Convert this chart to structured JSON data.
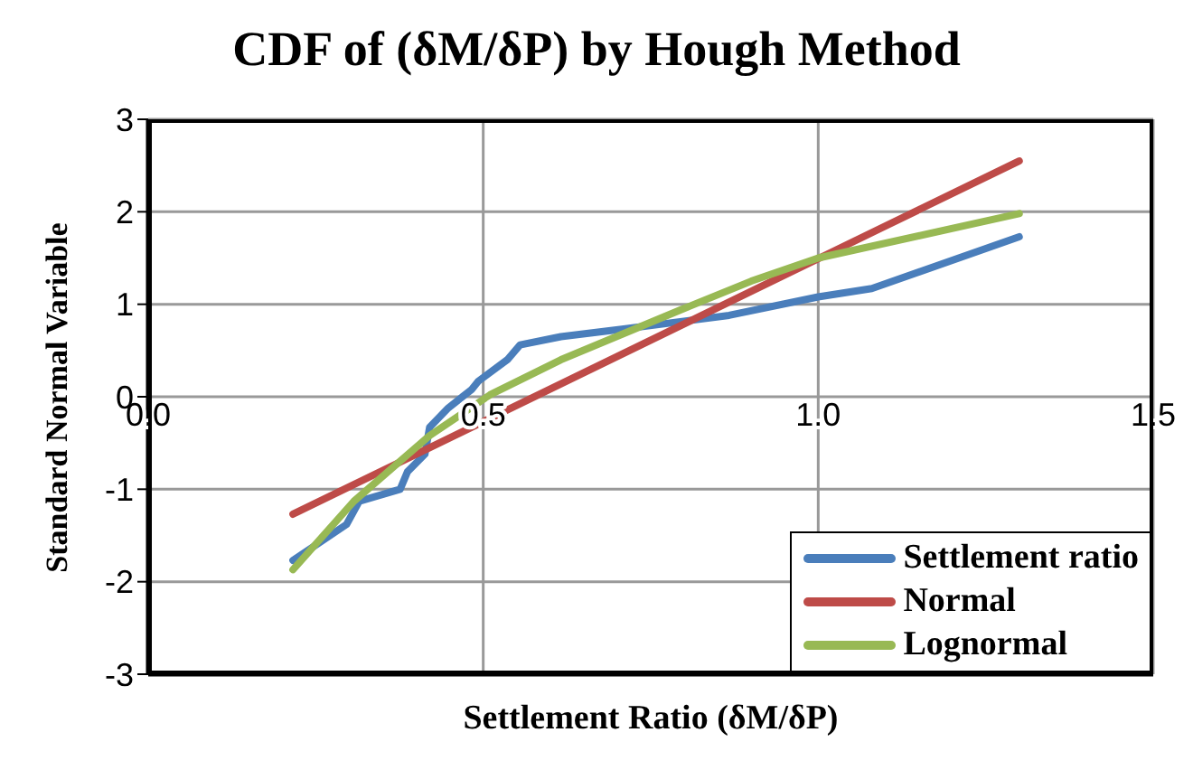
{
  "chart_data": {
    "type": "line",
    "title": "CDF of (δM/δP) by Hough Method",
    "xlabel": "Settlement Ratio (δM/δP)",
    "ylabel": "Standard Normal Variable",
    "xlim": [
      0,
      1.5
    ],
    "xticks": [
      {
        "value": 0,
        "label": "0.0"
      },
      {
        "value": 0.5,
        "label": "0.5"
      },
      {
        "value": 1,
        "label": "1.0"
      },
      {
        "value": 1.5,
        "label": "1.5"
      }
    ],
    "ylim": [
      -3,
      3
    ],
    "yticks": [
      -3,
      -2,
      -1,
      0,
      1,
      2,
      3
    ],
    "grid": true,
    "legend": "bottom right",
    "marker": "none",
    "line_style": "solid",
    "series": [
      {
        "name": "Settlement ratio",
        "color": "#4a7ebb",
        "x": [
          0.216,
          0.296,
          0.315,
          0.376,
          0.387,
          0.413,
          0.42,
          0.448,
          0.483,
          0.493,
          0.536,
          0.555,
          0.616,
          0.707,
          0.867,
          1.0,
          1.08,
          1.3
        ],
        "values": [
          -1.77,
          -1.38,
          -1.13,
          -1.0,
          -0.81,
          -0.62,
          -0.33,
          -0.12,
          0.08,
          0.17,
          0.4,
          0.56,
          0.65,
          0.73,
          0.88,
          1.08,
          1.17,
          1.73
        ]
      },
      {
        "name": "Normal",
        "color": "#be4b48",
        "x": [
          0.216,
          1.3
        ],
        "values": [
          -1.27,
          2.55
        ]
      },
      {
        "name": "Lognormal",
        "color": "#98b954",
        "x": [
          0.216,
          0.307,
          0.42,
          0.51,
          0.616,
          0.795,
          0.9,
          1.0,
          1.3
        ],
        "values": [
          -1.87,
          -1.13,
          -0.42,
          0.02,
          0.4,
          0.94,
          1.25,
          1.5,
          1.98
        ]
      }
    ]
  }
}
